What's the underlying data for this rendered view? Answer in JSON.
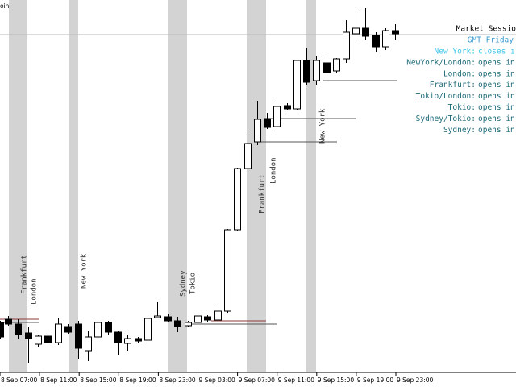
{
  "corner_label": "oin",
  "x_axis_labels": [
    "8 Sep 07:00",
    "8 Sep 11:00",
    "8 Sep 15:00",
    "8 Sep 19:00",
    "8 Sep 23:00",
    "9 Sep 03:00",
    "9 Sep 07:00",
    "9 Sep 11:00",
    "9 Sep 15:00",
    "9 Sep 19:00",
    "9 Sep 23:00"
  ],
  "session_labels": [
    "Frankfurt",
    "London",
    "New York",
    "Sydney",
    "Tokio",
    "Frankfurt",
    "London",
    "New York"
  ],
  "panel": {
    "title": "Market Sessio",
    "gmt": "GMT Friday",
    "lines": [
      {
        "name": "New York:",
        "status": "closes i"
      },
      {
        "name": "NewYork/London:",
        "status": "opens in"
      },
      {
        "name": "London:",
        "status": "opens in"
      },
      {
        "name": "Frankfurt:",
        "status": "opens in"
      },
      {
        "name": "Tokio/London:",
        "status": "opens in"
      },
      {
        "name": "Tokio:",
        "status": "opens in"
      },
      {
        "name": "Sydney/Tokio:",
        "status": "opens in"
      },
      {
        "name": "Sydney:",
        "status": "opens in"
      }
    ]
  }
}
